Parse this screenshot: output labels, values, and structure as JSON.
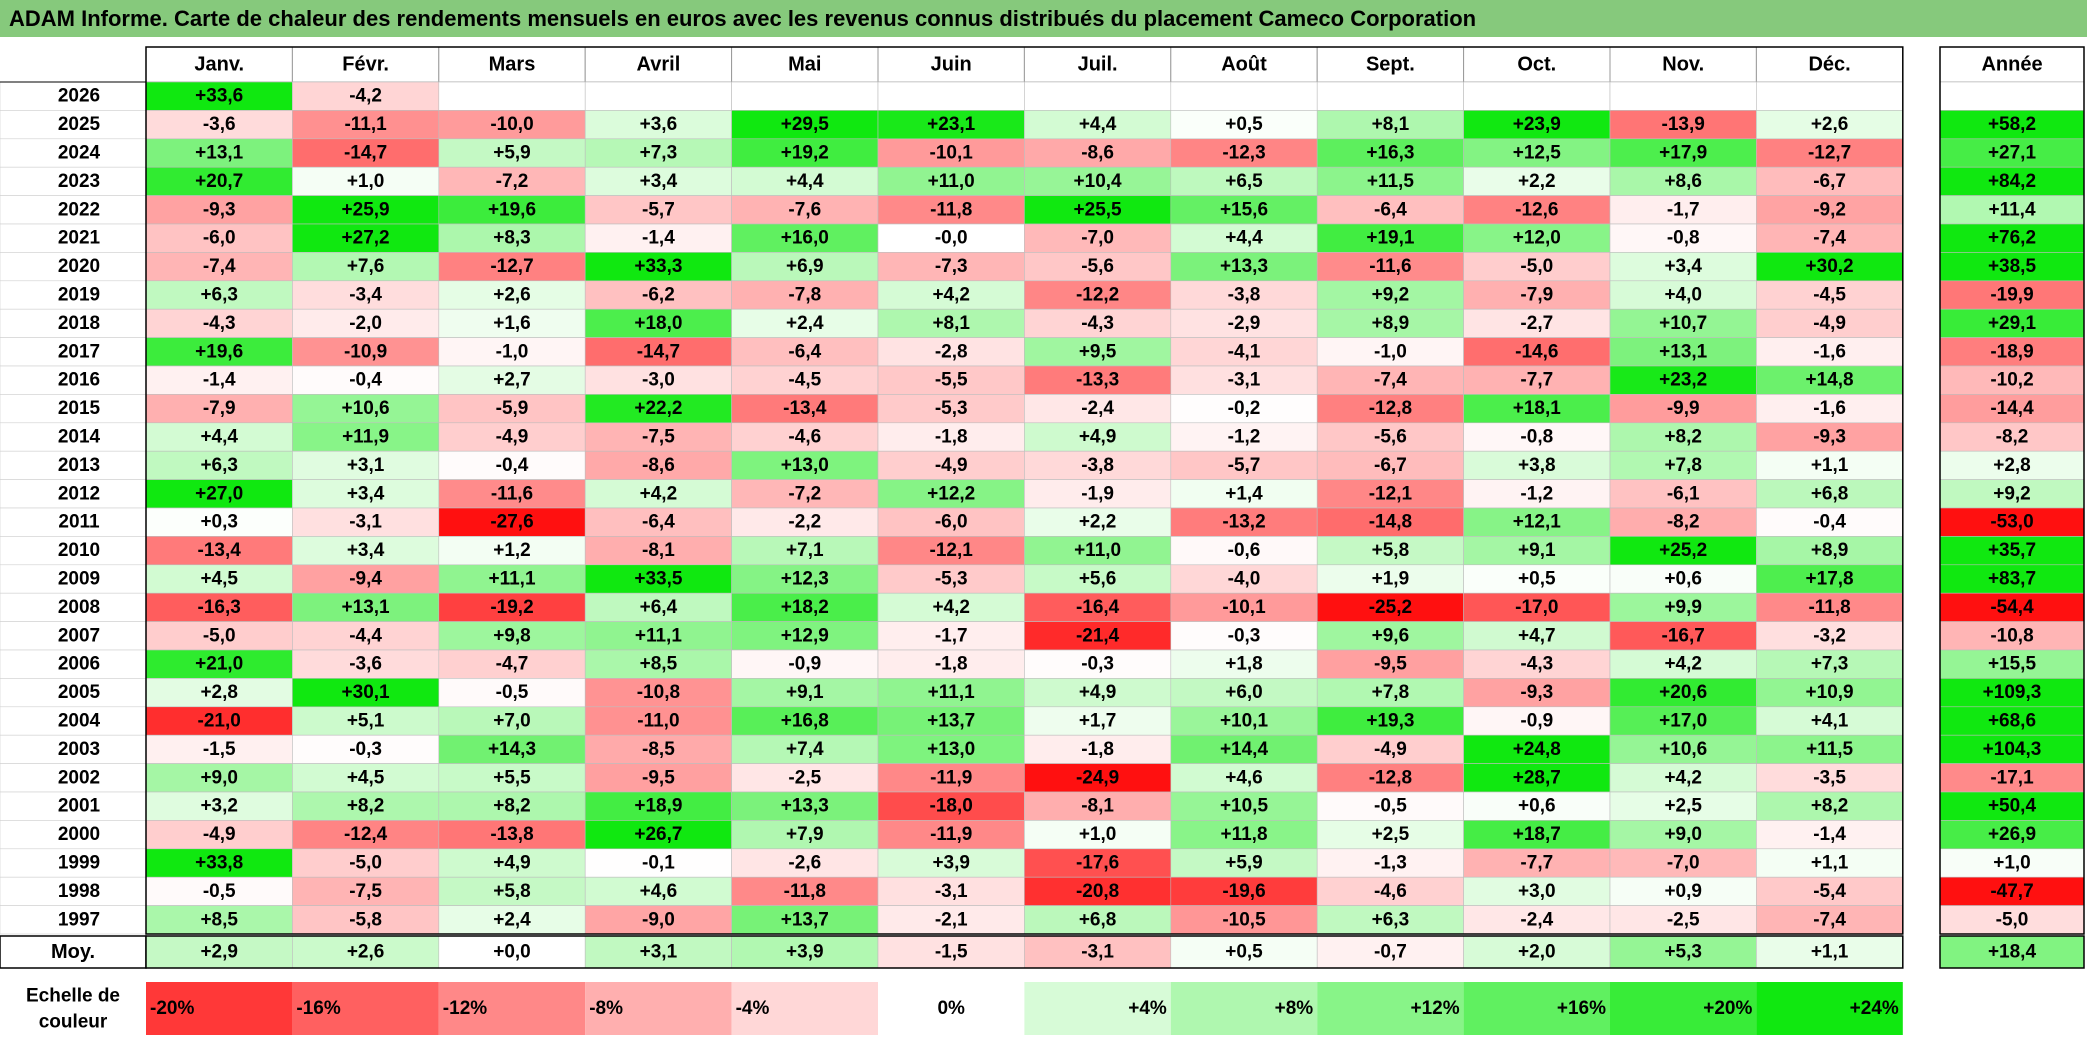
{
  "title": "ADAM Informe. Carte de chaleur des rendements mensuels en euros avec les revenus connus distribués du placement Cameco Corporation",
  "chart_data": {
    "type": "heatmap",
    "title": "ADAM Informe. Carte de chaleur des rendements mensuels en euros avec les revenus connus distribués du placement Cameco Corporation",
    "columns": [
      "Janv.",
      "Févr.",
      "Mars",
      "Avril",
      "Mai",
      "Juin",
      "Juil.",
      "Août",
      "Sept.",
      "Oct.",
      "Nov.",
      "Déc."
    ],
    "year_label": "Année",
    "years": [
      "2026",
      "2025",
      "2024",
      "2023",
      "2022",
      "2021",
      "2020",
      "2019",
      "2018",
      "2017",
      "2016",
      "2015",
      "2014",
      "2013",
      "2012",
      "2011",
      "2010",
      "2009",
      "2008",
      "2007",
      "2006",
      "2005",
      "2004",
      "2003",
      "2002",
      "2001",
      "2000",
      "1999",
      "1998",
      "1997"
    ],
    "values": [
      [
        "+33,6",
        "-4,2",
        "",
        "",
        "",
        "",
        "",
        "",
        "",
        "",
        "",
        ""
      ],
      [
        "-3,6",
        "-11,1",
        "-10,0",
        "+3,6",
        "+29,5",
        "+23,1",
        "+4,4",
        "+0,5",
        "+8,1",
        "+23,9",
        "-13,9",
        "+2,6"
      ],
      [
        "+13,1",
        "-14,7",
        "+5,9",
        "+7,3",
        "+19,2",
        "-10,1",
        "-8,6",
        "-12,3",
        "+16,3",
        "+12,5",
        "+17,9",
        "-12,7"
      ],
      [
        "+20,7",
        "+1,0",
        "-7,2",
        "+3,4",
        "+4,4",
        "+11,0",
        "+10,4",
        "+6,5",
        "+11,5",
        "+2,2",
        "+8,6",
        "-6,7"
      ],
      [
        "-9,3",
        "+25,9",
        "+19,6",
        "-5,7",
        "-7,6",
        "-11,8",
        "+25,5",
        "+15,6",
        "-6,4",
        "-12,6",
        "-1,7",
        "-9,2"
      ],
      [
        "-6,0",
        "+27,2",
        "+8,3",
        "-1,4",
        "+16,0",
        "-0,0",
        "-7,0",
        "+4,4",
        "+19,1",
        "+12,0",
        "-0,8",
        "-7,4"
      ],
      [
        "-7,4",
        "+7,6",
        "-12,7",
        "+33,3",
        "+6,9",
        "-7,3",
        "-5,6",
        "+13,3",
        "-11,6",
        "-5,0",
        "+3,4",
        "+30,2"
      ],
      [
        "+6,3",
        "-3,4",
        "+2,6",
        "-6,2",
        "-7,8",
        "+4,2",
        "-12,2",
        "-3,8",
        "+9,2",
        "-7,9",
        "+4,0",
        "-4,5"
      ],
      [
        "-4,3",
        "-2,0",
        "+1,6",
        "+18,0",
        "+2,4",
        "+8,1",
        "-4,3",
        "-2,9",
        "+8,9",
        "-2,7",
        "+10,7",
        "-4,9"
      ],
      [
        "+19,6",
        "-10,9",
        "-1,0",
        "-14,7",
        "-6,4",
        "-2,8",
        "+9,5",
        "-4,1",
        "-1,0",
        "-14,6",
        "+13,1",
        "-1,6"
      ],
      [
        "-1,4",
        "-0,4",
        "+2,7",
        "-3,0",
        "-4,5",
        "-5,5",
        "-13,3",
        "-3,1",
        "-7,4",
        "-7,7",
        "+23,2",
        "+14,8"
      ],
      [
        "-7,9",
        "+10,6",
        "-5,9",
        "+22,2",
        "-13,4",
        "-5,3",
        "-2,4",
        "-0,2",
        "-12,8",
        "+18,1",
        "-9,9",
        "-1,6"
      ],
      [
        "+4,4",
        "+11,9",
        "-4,9",
        "-7,5",
        "-4,6",
        "-1,8",
        "+4,9",
        "-1,2",
        "-5,6",
        "-0,8",
        "+8,2",
        "-9,3"
      ],
      [
        "+6,3",
        "+3,1",
        "-0,4",
        "-8,6",
        "+13,0",
        "-4,9",
        "-3,8",
        "-5,7",
        "-6,7",
        "+3,8",
        "+7,8",
        "+1,1"
      ],
      [
        "+27,0",
        "+3,4",
        "-11,6",
        "+4,2",
        "-7,2",
        "+12,2",
        "-1,9",
        "+1,4",
        "-12,1",
        "-1,2",
        "-6,1",
        "+6,8"
      ],
      [
        "+0,3",
        "-3,1",
        "-27,6",
        "-6,4",
        "-2,2",
        "-6,0",
        "+2,2",
        "-13,2",
        "-14,8",
        "+12,1",
        "-8,2",
        "-0,4"
      ],
      [
        "-13,4",
        "+3,4",
        "+1,2",
        "-8,1",
        "+7,1",
        "-12,1",
        "+11,0",
        "-0,6",
        "+5,8",
        "+9,1",
        "+25,2",
        "+8,9"
      ],
      [
        "+4,5",
        "-9,4",
        "+11,1",
        "+33,5",
        "+12,3",
        "-5,3",
        "+5,6",
        "-4,0",
        "+1,9",
        "+0,5",
        "+0,6",
        "+17,8"
      ],
      [
        "-16,3",
        "+13,1",
        "-19,2",
        "+6,4",
        "+18,2",
        "+4,2",
        "-16,4",
        "-10,1",
        "-25,2",
        "-17,0",
        "+9,9",
        "-11,8"
      ],
      [
        "-5,0",
        "-4,4",
        "+9,8",
        "+11,1",
        "+12,9",
        "-1,7",
        "-21,4",
        "-0,3",
        "+9,6",
        "+4,7",
        "-16,7",
        "-3,2"
      ],
      [
        "+21,0",
        "-3,6",
        "-4,7",
        "+8,5",
        "-0,9",
        "-1,8",
        "-0,3",
        "+1,8",
        "-9,5",
        "-4,3",
        "+4,2",
        "+7,3"
      ],
      [
        "+2,8",
        "+30,1",
        "-0,5",
        "-10,8",
        "+9,1",
        "+11,1",
        "+4,9",
        "+6,0",
        "+7,8",
        "-9,3",
        "+20,6",
        "+10,9"
      ],
      [
        "-21,0",
        "+5,1",
        "+7,0",
        "-11,0",
        "+16,8",
        "+13,7",
        "+1,7",
        "+10,1",
        "+19,3",
        "-0,9",
        "+17,0",
        "+4,1"
      ],
      [
        "-1,5",
        "-0,3",
        "+14,3",
        "-8,5",
        "+7,4",
        "+13,0",
        "-1,8",
        "+14,4",
        "-4,9",
        "+24,8",
        "+10,6",
        "+11,5"
      ],
      [
        "+9,0",
        "+4,5",
        "+5,5",
        "-9,5",
        "-2,5",
        "-11,9",
        "-24,9",
        "+4,6",
        "-12,8",
        "+28,7",
        "+4,2",
        "-3,5"
      ],
      [
        "+3,2",
        "+8,2",
        "+8,2",
        "+18,9",
        "+13,3",
        "-18,0",
        "-8,1",
        "+10,5",
        "-0,5",
        "+0,6",
        "+2,5",
        "+8,2"
      ],
      [
        "-4,9",
        "-12,4",
        "-13,8",
        "+26,7",
        "+7,9",
        "-11,9",
        "+1,0",
        "+11,8",
        "+2,5",
        "+18,7",
        "+9,0",
        "-1,4"
      ],
      [
        "+33,8",
        "-5,0",
        "+4,9",
        "-0,1",
        "-2,6",
        "+3,9",
        "-17,6",
        "+5,9",
        "-1,3",
        "-7,7",
        "-7,0",
        "+1,1"
      ],
      [
        "-0,5",
        "-7,5",
        "+5,8",
        "+4,6",
        "-11,8",
        "-3,1",
        "-20,8",
        "-19,6",
        "-4,6",
        "+3,0",
        "+0,9",
        "-5,4"
      ],
      [
        "+8,5",
        "-5,8",
        "+2,4",
        "-9,0",
        "+13,7",
        "-2,1",
        "+6,8",
        "-10,5",
        "+6,3",
        "-2,4",
        "-2,5",
        "-7,4"
      ]
    ],
    "annual": [
      "",
      "+58,2",
      "+27,1",
      "+84,2",
      "+11,4",
      "+76,2",
      "+38,5",
      "-19,9",
      "+29,1",
      "-18,9",
      "-10,2",
      "-14,4",
      "-8,2",
      "+2,8",
      "+9,2",
      "-53,0",
      "+35,7",
      "+83,7",
      "-54,4",
      "-10,8",
      "+15,5",
      "+109,3",
      "+68,6",
      "+104,3",
      "-17,1",
      "+50,4",
      "+26,9",
      "+1,0",
      "-47,7",
      "-5,0"
    ],
    "average_label": "Moy.",
    "average": [
      "+2,9",
      "+2,6",
      "+0,0",
      "+3,1",
      "+3,9",
      "-1,5",
      "-3,1",
      "+0,5",
      "-0,7",
      "+2,0",
      "+5,3",
      "+1,1"
    ],
    "average_annual": "+18,4",
    "scale_label": [
      "Echelle de",
      "couleur"
    ],
    "scale": [
      "-20%",
      "-16%",
      "-12%",
      "-8%",
      "-4%",
      "0%",
      "+4%",
      "+8%",
      "+12%",
      "+16%",
      "+20%",
      "+24%"
    ],
    "colors": {
      "neg_max": "#ff1010",
      "zero": "#ffffff",
      "pos_max": "#10e810",
      "title_bg": "#86c97c"
    }
  }
}
